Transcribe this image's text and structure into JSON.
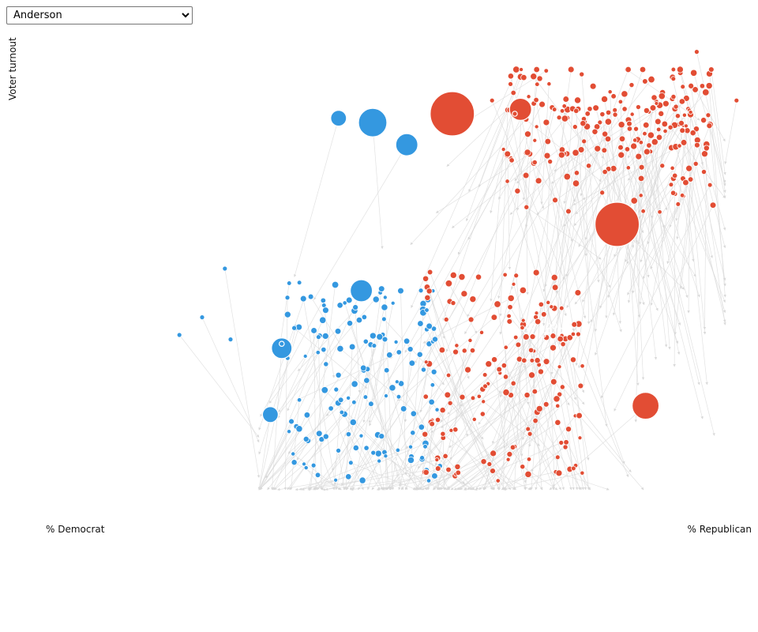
{
  "county_select": {
    "selected": "Anderson",
    "options": [
      "Anderson"
    ]
  },
  "axes": {
    "y_label": "Voter turnout",
    "x_left_label": "% Democrat",
    "x_right_label": "% Republican"
  },
  "colors": {
    "democrat": "#3498e0",
    "republican": "#e24d34",
    "arrow": "#d8d8d8"
  },
  "chart_data": {
    "type": "scatter",
    "x_range": [
      0,
      1
    ],
    "y_range": [
      0,
      1
    ],
    "blue_large": [
      [
        0.29,
        0.84,
        10
      ],
      [
        0.35,
        0.83,
        18
      ],
      [
        0.41,
        0.78,
        14
      ],
      [
        0.33,
        0.45,
        14
      ],
      [
        0.19,
        0.32,
        13
      ],
      [
        0.17,
        0.17,
        10
      ]
    ],
    "red_large": [
      [
        0.49,
        0.85,
        28
      ],
      [
        0.61,
        0.86,
        14
      ],
      [
        0.78,
        0.6,
        28
      ],
      [
        0.83,
        0.19,
        17
      ]
    ],
    "seed": 7
  }
}
